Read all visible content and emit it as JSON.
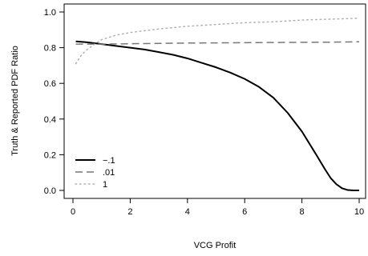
{
  "chart_data": {
    "type": "line",
    "xlabel": "VCG Profit",
    "ylabel": "Truth & Reported PDF Ratio",
    "xlim": [
      0,
      10
    ],
    "ylim": [
      0,
      1
    ],
    "x_ticks": [
      0,
      2,
      4,
      6,
      8,
      10
    ],
    "x_tick_labels": [
      "0",
      "2",
      "4",
      "6",
      "8",
      "10"
    ],
    "y_ticks": [
      0,
      0.2,
      0.4,
      0.6,
      0.8,
      1.0
    ],
    "y_tick_labels": [
      "0.0",
      "0.2",
      "0.4",
      "0.6",
      "0.8",
      "1.0"
    ],
    "grid": false,
    "legend_position": "bottom-left",
    "series": [
      {
        "name": "−.1",
        "color": "#000000",
        "style": "solid",
        "x": [
          0.1,
          0.5,
          1,
          1.5,
          2,
          2.5,
          3,
          3.5,
          4,
          4.5,
          5,
          5.5,
          6,
          6.5,
          7,
          7.5,
          8,
          8.5,
          8.8,
          9,
          9.2,
          9.4,
          9.6,
          9.8,
          10
        ],
        "y": [
          0.835,
          0.83,
          0.82,
          0.81,
          0.8,
          0.79,
          0.775,
          0.76,
          0.74,
          0.715,
          0.69,
          0.66,
          0.625,
          0.58,
          0.52,
          0.435,
          0.33,
          0.2,
          0.12,
          0.07,
          0.035,
          0.012,
          0.002,
          0.0,
          0.0
        ]
      },
      {
        "name": ".01",
        "color": "#777777",
        "style": "dashed",
        "x": [
          0.1,
          1,
          2,
          3,
          4,
          5,
          6,
          7,
          8,
          9,
          10
        ],
        "y": [
          0.82,
          0.82,
          0.822,
          0.824,
          0.826,
          0.827,
          0.828,
          0.829,
          0.83,
          0.831,
          0.833
        ]
      },
      {
        "name": "1",
        "color": "#b0b0b0",
        "style": "dotted",
        "x": [
          0.1,
          0.3,
          0.5,
          0.8,
          1,
          1.5,
          2,
          2.5,
          3,
          4,
          5,
          6,
          7,
          8,
          9,
          10
        ],
        "y": [
          0.71,
          0.76,
          0.79,
          0.825,
          0.845,
          0.87,
          0.885,
          0.895,
          0.905,
          0.92,
          0.93,
          0.94,
          0.945,
          0.955,
          0.96,
          0.965
        ]
      }
    ]
  }
}
